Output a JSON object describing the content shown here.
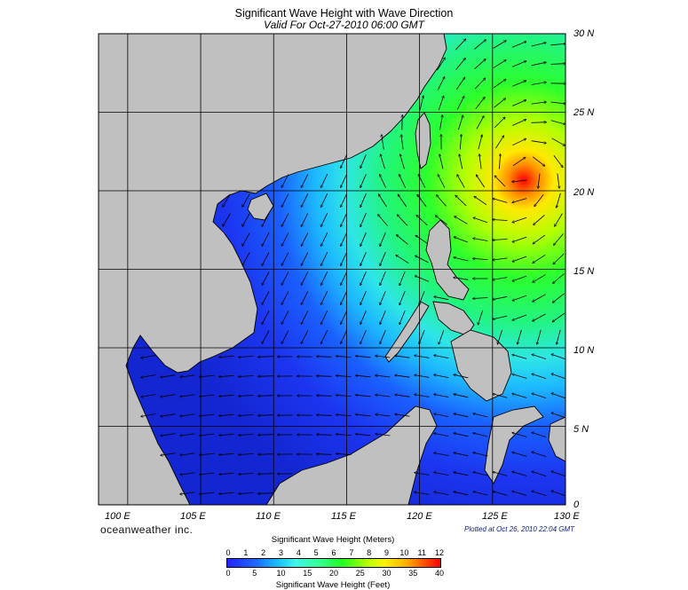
{
  "header": {
    "title": "Significant Wave Height with Wave Direction",
    "subtitle": "Valid For Oct-27-2010 06:00 GMT"
  },
  "map": {
    "lon_range": [
      98,
      130
    ],
    "lat_range": [
      0,
      30
    ],
    "lon_labels": [
      {
        "value": 100,
        "label": "100 E"
      },
      {
        "value": 105,
        "label": "105 E"
      },
      {
        "value": 110,
        "label": "110 E"
      },
      {
        "value": 115,
        "label": "115 E"
      },
      {
        "value": 120,
        "label": "120 E"
      },
      {
        "value": 125,
        "label": "125 E"
      },
      {
        "value": 130,
        "label": "130 E"
      }
    ],
    "lat_labels": [
      {
        "value": 30,
        "label": "30 N"
      },
      {
        "value": 25,
        "label": "25 N"
      },
      {
        "value": 20,
        "label": "20 N"
      },
      {
        "value": 15,
        "label": "15 N"
      },
      {
        "value": 10,
        "label": "10 N"
      },
      {
        "value": 5,
        "label": "5 N"
      },
      {
        "value": 0,
        "label": "0"
      }
    ],
    "storm_center": {
      "lon": 127,
      "lat": 21.2
    },
    "colors": {
      "land": "#c0c0c0",
      "coast": "#000000",
      "grid": "#000000",
      "arrows": "#000000"
    }
  },
  "footer": {
    "brand": "oceanweather inc.",
    "plotted": "Plotted at Oct 26, 2010 22:04 GMT"
  },
  "colorbar": {
    "title_meters": "Significant Wave Height (Meters)",
    "title_feet": "Significant Wave Height (Feet)",
    "meters": [
      "0",
      "1",
      "2",
      "3",
      "4",
      "5",
      "6",
      "7",
      "8",
      "9",
      "10",
      "11",
      "12"
    ],
    "meters_max": 12,
    "feet": [
      "0",
      "5",
      "10",
      "15",
      "20",
      "25",
      "30",
      "35",
      "40"
    ],
    "feet_max": 40
  }
}
